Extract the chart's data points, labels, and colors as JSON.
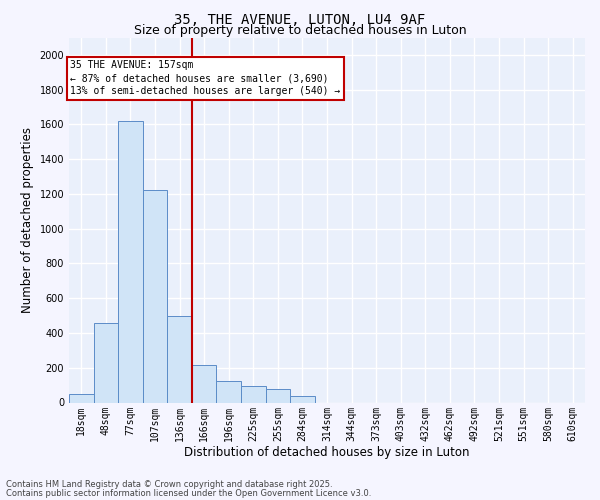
{
  "title_line1": "35, THE AVENUE, LUTON, LU4 9AF",
  "title_line2": "Size of property relative to detached houses in Luton",
  "xlabel": "Distribution of detached houses by size in Luton",
  "ylabel": "Number of detached properties",
  "categories": [
    "18sqm",
    "48sqm",
    "77sqm",
    "107sqm",
    "136sqm",
    "166sqm",
    "196sqm",
    "225sqm",
    "255sqm",
    "284sqm",
    "314sqm",
    "344sqm",
    "373sqm",
    "403sqm",
    "432sqm",
    "462sqm",
    "492sqm",
    "521sqm",
    "551sqm",
    "580sqm",
    "610sqm"
  ],
  "values": [
    50,
    460,
    1620,
    1220,
    500,
    215,
    125,
    95,
    75,
    40,
    0,
    0,
    0,
    0,
    0,
    0,
    0,
    0,
    0,
    0,
    0
  ],
  "bar_color": "#d0e4f7",
  "bar_edge_color": "#5b8cc8",
  "vline_color": "#c00000",
  "annotation_title": "35 THE AVENUE: 157sqm",
  "annotation_line1": "← 87% of detached houses are smaller (3,690)",
  "annotation_line2": "13% of semi-detached houses are larger (540) →",
  "annotation_box_edgecolor": "#c00000",
  "footer_line1": "Contains HM Land Registry data © Crown copyright and database right 2025.",
  "footer_line2": "Contains public sector information licensed under the Open Government Licence v3.0.",
  "ylim": [
    0,
    2100
  ],
  "yticks": [
    0,
    200,
    400,
    600,
    800,
    1000,
    1200,
    1400,
    1600,
    1800,
    2000
  ],
  "plot_bg": "#eaf0fb",
  "fig_bg": "#f5f5ff",
  "grid_color": "#ffffff",
  "title_fontsize": 10,
  "subtitle_fontsize": 9,
  "tick_fontsize": 7,
  "label_fontsize": 8.5,
  "footer_fontsize": 6,
  "annot_fontsize": 7
}
